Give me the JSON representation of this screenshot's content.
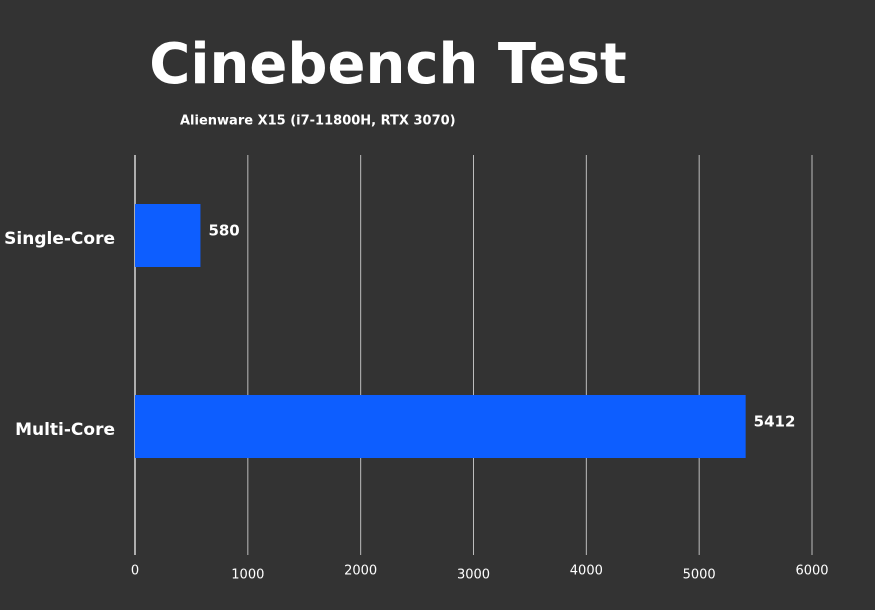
{
  "chart_data": {
    "type": "barh",
    "title": "Cinebench Test",
    "subtitle": "Alienware X15 (i7-11800H, RTX 3070)",
    "categories": [
      "Single-Core",
      "Multi-Core"
    ],
    "values": [
      580,
      5412
    ],
    "color": "#0d5eff",
    "xlim": [
      0,
      6000
    ],
    "xticks": [
      0,
      1000,
      2000,
      3000,
      4000,
      5000,
      6000
    ],
    "grid": true
  }
}
